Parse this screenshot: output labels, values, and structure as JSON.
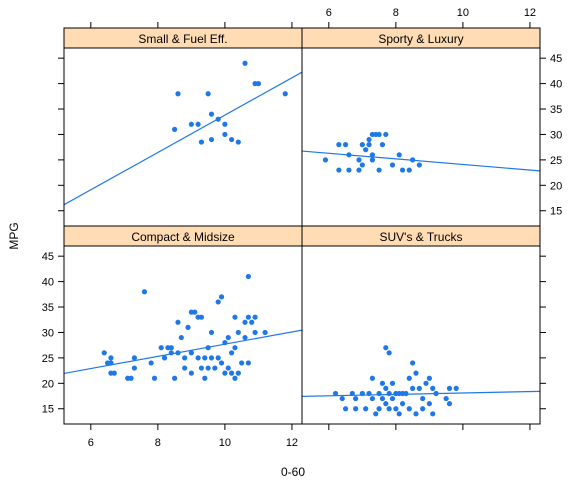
{
  "chart_data": {
    "type": "scatter",
    "xlabel": "0-60",
    "ylabel": "MPG",
    "xlim": [
      5.2,
      12.3
    ],
    "ylim": [
      12,
      47
    ],
    "x_ticks": [
      6,
      8,
      10,
      12
    ],
    "y_ticks": [
      15,
      20,
      25,
      30,
      35,
      40,
      45
    ],
    "colors": {
      "point": "#1f78e8",
      "line": "#1f78e8",
      "strip": "#ffdcb3",
      "border": "#000000"
    },
    "panels": [
      {
        "title": "Small & Fuel Eff.",
        "fit": {
          "intercept": -2.9,
          "slope": 3.67
        },
        "points": [
          {
            "x": 8.5,
            "y": 31
          },
          {
            "x": 8.6,
            "y": 38
          },
          {
            "x": 9.0,
            "y": 32
          },
          {
            "x": 9.2,
            "y": 32
          },
          {
            "x": 9.3,
            "y": 28.5
          },
          {
            "x": 9.5,
            "y": 38
          },
          {
            "x": 9.6,
            "y": 34
          },
          {
            "x": 9.6,
            "y": 29
          },
          {
            "x": 9.8,
            "y": 33
          },
          {
            "x": 10.0,
            "y": 32
          },
          {
            "x": 10.0,
            "y": 30
          },
          {
            "x": 10.2,
            "y": 29
          },
          {
            "x": 10.4,
            "y": 28.5
          },
          {
            "x": 10.6,
            "y": 44
          },
          {
            "x": 10.9,
            "y": 40
          },
          {
            "x": 11.0,
            "y": 40
          },
          {
            "x": 11.8,
            "y": 38
          }
        ]
      },
      {
        "title": "Sporty & Luxury",
        "fit": {
          "intercept": 29.6,
          "slope": -0.55
        },
        "points": [
          {
            "x": 5.9,
            "y": 25
          },
          {
            "x": 6.3,
            "y": 23
          },
          {
            "x": 6.3,
            "y": 28
          },
          {
            "x": 6.5,
            "y": 28
          },
          {
            "x": 6.6,
            "y": 26
          },
          {
            "x": 6.6,
            "y": 23
          },
          {
            "x": 6.9,
            "y": 25
          },
          {
            "x": 6.9,
            "y": 23
          },
          {
            "x": 7.0,
            "y": 24
          },
          {
            "x": 7.0,
            "y": 28
          },
          {
            "x": 7.1,
            "y": 27
          },
          {
            "x": 7.2,
            "y": 29
          },
          {
            "x": 7.2,
            "y": 28
          },
          {
            "x": 7.3,
            "y": 30
          },
          {
            "x": 7.3,
            "y": 26
          },
          {
            "x": 7.3,
            "y": 25
          },
          {
            "x": 7.4,
            "y": 30
          },
          {
            "x": 7.5,
            "y": 30
          },
          {
            "x": 7.5,
            "y": 23
          },
          {
            "x": 7.6,
            "y": 28
          },
          {
            "x": 7.7,
            "y": 30
          },
          {
            "x": 7.9,
            "y": 24
          },
          {
            "x": 8.1,
            "y": 26
          },
          {
            "x": 8.2,
            "y": 23
          },
          {
            "x": 8.4,
            "y": 23
          },
          {
            "x": 8.5,
            "y": 25
          },
          {
            "x": 8.7,
            "y": 24
          }
        ]
      },
      {
        "title": "Compact & Midsize",
        "fit": {
          "intercept": 15.7,
          "slope": 1.2
        },
        "points": [
          {
            "x": 6.4,
            "y": 26
          },
          {
            "x": 6.5,
            "y": 24
          },
          {
            "x": 6.6,
            "y": 25
          },
          {
            "x": 6.6,
            "y": 24
          },
          {
            "x": 6.6,
            "y": 22
          },
          {
            "x": 6.7,
            "y": 22
          },
          {
            "x": 7.1,
            "y": 21
          },
          {
            "x": 7.2,
            "y": 21
          },
          {
            "x": 7.3,
            "y": 25
          },
          {
            "x": 7.3,
            "y": 23
          },
          {
            "x": 7.6,
            "y": 38
          },
          {
            "x": 7.8,
            "y": 24
          },
          {
            "x": 7.9,
            "y": 21
          },
          {
            "x": 8.1,
            "y": 27
          },
          {
            "x": 8.2,
            "y": 25
          },
          {
            "x": 8.3,
            "y": 27
          },
          {
            "x": 8.4,
            "y": 27
          },
          {
            "x": 8.4,
            "y": 26
          },
          {
            "x": 8.5,
            "y": 21
          },
          {
            "x": 8.6,
            "y": 32
          },
          {
            "x": 8.6,
            "y": 26
          },
          {
            "x": 8.7,
            "y": 29
          },
          {
            "x": 8.8,
            "y": 25
          },
          {
            "x": 8.8,
            "y": 23
          },
          {
            "x": 8.9,
            "y": 31
          },
          {
            "x": 9.0,
            "y": 34
          },
          {
            "x": 9.0,
            "y": 26
          },
          {
            "x": 9.0,
            "y": 22
          },
          {
            "x": 9.1,
            "y": 34
          },
          {
            "x": 9.2,
            "y": 33
          },
          {
            "x": 9.2,
            "y": 25
          },
          {
            "x": 9.3,
            "y": 33
          },
          {
            "x": 9.3,
            "y": 23
          },
          {
            "x": 9.4,
            "y": 25
          },
          {
            "x": 9.4,
            "y": 21
          },
          {
            "x": 9.5,
            "y": 27
          },
          {
            "x": 9.5,
            "y": 23
          },
          {
            "x": 9.6,
            "y": 30
          },
          {
            "x": 9.6,
            "y": 25
          },
          {
            "x": 9.7,
            "y": 23
          },
          {
            "x": 9.8,
            "y": 36
          },
          {
            "x": 9.8,
            "y": 25
          },
          {
            "x": 9.9,
            "y": 37
          },
          {
            "x": 9.9,
            "y": 24
          },
          {
            "x": 10.0,
            "y": 28
          },
          {
            "x": 10.0,
            "y": 22
          },
          {
            "x": 10.1,
            "y": 29
          },
          {
            "x": 10.1,
            "y": 23
          },
          {
            "x": 10.2,
            "y": 26
          },
          {
            "x": 10.2,
            "y": 22
          },
          {
            "x": 10.3,
            "y": 33
          },
          {
            "x": 10.3,
            "y": 27
          },
          {
            "x": 10.3,
            "y": 21
          },
          {
            "x": 10.4,
            "y": 30
          },
          {
            "x": 10.4,
            "y": 22
          },
          {
            "x": 10.5,
            "y": 24
          },
          {
            "x": 10.6,
            "y": 32
          },
          {
            "x": 10.6,
            "y": 29
          },
          {
            "x": 10.7,
            "y": 41
          },
          {
            "x": 10.7,
            "y": 33
          },
          {
            "x": 10.7,
            "y": 24
          },
          {
            "x": 10.8,
            "y": 32
          },
          {
            "x": 10.9,
            "y": 33
          },
          {
            "x": 10.9,
            "y": 30
          },
          {
            "x": 11.2,
            "y": 30
          }
        ]
      },
      {
        "title": "SUV's & Trucks",
        "fit": {
          "intercept": 16.7,
          "slope": 0.14
        },
        "points": [
          {
            "x": 6.2,
            "y": 18
          },
          {
            "x": 6.4,
            "y": 17
          },
          {
            "x": 6.5,
            "y": 15
          },
          {
            "x": 6.7,
            "y": 18
          },
          {
            "x": 6.8,
            "y": 17
          },
          {
            "x": 6.8,
            "y": 15
          },
          {
            "x": 7.0,
            "y": 18
          },
          {
            "x": 7.1,
            "y": 15
          },
          {
            "x": 7.2,
            "y": 18
          },
          {
            "x": 7.3,
            "y": 21
          },
          {
            "x": 7.3,
            "y": 17
          },
          {
            "x": 7.4,
            "y": 14
          },
          {
            "x": 7.5,
            "y": 18
          },
          {
            "x": 7.5,
            "y": 15
          },
          {
            "x": 7.6,
            "y": 20
          },
          {
            "x": 7.6,
            "y": 17
          },
          {
            "x": 7.7,
            "y": 27
          },
          {
            "x": 7.7,
            "y": 19
          },
          {
            "x": 7.7,
            "y": 16
          },
          {
            "x": 7.8,
            "y": 26
          },
          {
            "x": 7.8,
            "y": 18
          },
          {
            "x": 7.8,
            "y": 15
          },
          {
            "x": 7.9,
            "y": 20
          },
          {
            "x": 7.9,
            "y": 17
          },
          {
            "x": 8.0,
            "y": 18
          },
          {
            "x": 8.0,
            "y": 15
          },
          {
            "x": 8.1,
            "y": 18
          },
          {
            "x": 8.1,
            "y": 14
          },
          {
            "x": 8.2,
            "y": 18
          },
          {
            "x": 8.2,
            "y": 16
          },
          {
            "x": 8.3,
            "y": 18
          },
          {
            "x": 8.4,
            "y": 21
          },
          {
            "x": 8.4,
            "y": 15
          },
          {
            "x": 8.5,
            "y": 24
          },
          {
            "x": 8.5,
            "y": 19
          },
          {
            "x": 8.6,
            "y": 22
          },
          {
            "x": 8.6,
            "y": 14
          },
          {
            "x": 8.7,
            "y": 19
          },
          {
            "x": 8.8,
            "y": 17
          },
          {
            "x": 8.8,
            "y": 15
          },
          {
            "x": 8.9,
            "y": 20
          },
          {
            "x": 9.0,
            "y": 21
          },
          {
            "x": 9.0,
            "y": 16
          },
          {
            "x": 9.1,
            "y": 19
          },
          {
            "x": 9.1,
            "y": 14
          },
          {
            "x": 9.2,
            "y": 18
          },
          {
            "x": 9.5,
            "y": 17
          },
          {
            "x": 9.6,
            "y": 19
          },
          {
            "x": 9.6,
            "y": 16
          },
          {
            "x": 9.8,
            "y": 19
          }
        ]
      }
    ]
  }
}
